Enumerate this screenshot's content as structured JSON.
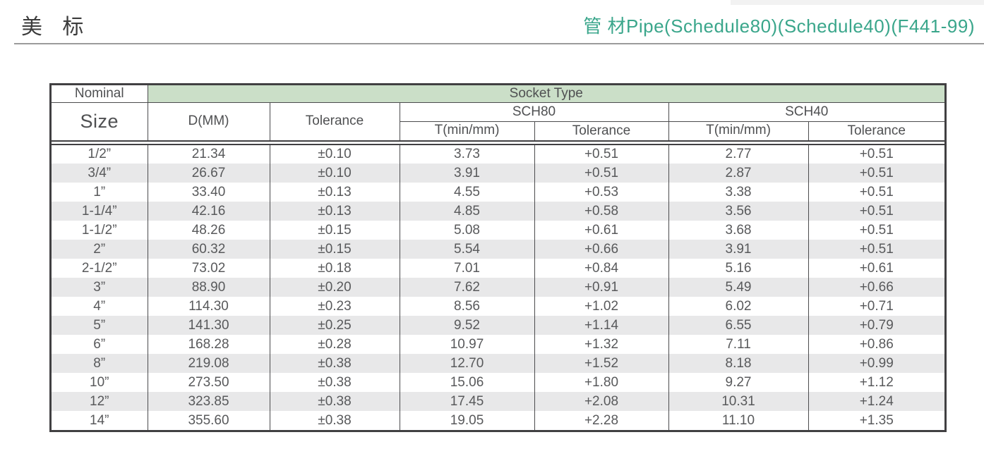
{
  "header": {
    "title_cn": "美 标",
    "title_right": "管 材Pipe(Schedule80)(Schedule40)(F441-99)",
    "accent_color": "#3aa68b"
  },
  "table": {
    "header": {
      "nominal": "Nominal",
      "size": "Size",
      "socket_type": "Socket Type",
      "d_mm": "D(MM)",
      "tolerance": "Tolerance",
      "sch80": "SCH80",
      "sch40": "SCH40",
      "t_min": "T(min/mm)",
      "sub_tolerance": "Tolerance",
      "socket_bg_color": "#cbdfc8",
      "stripe_color": "#e8e8e9"
    },
    "rows": [
      {
        "size": "1/2”",
        "d": "21.34",
        "tol": "±0.10",
        "sch80_t": "3.73",
        "sch80_tol": "+0.51",
        "sch40_t": "2.77",
        "sch40_tol": "+0.51"
      },
      {
        "size": "3/4”",
        "d": "26.67",
        "tol": "±0.10",
        "sch80_t": "3.91",
        "sch80_tol": "+0.51",
        "sch40_t": "2.87",
        "sch40_tol": "+0.51"
      },
      {
        "size": "1”",
        "d": "33.40",
        "tol": "±0.13",
        "sch80_t": "4.55",
        "sch80_tol": "+0.53",
        "sch40_t": "3.38",
        "sch40_tol": "+0.51"
      },
      {
        "size": "1-1/4”",
        "d": "42.16",
        "tol": "±0.13",
        "sch80_t": "4.85",
        "sch80_tol": "+0.58",
        "sch40_t": "3.56",
        "sch40_tol": "+0.51"
      },
      {
        "size": "1-1/2”",
        "d": "48.26",
        "tol": "±0.15",
        "sch80_t": "5.08",
        "sch80_tol": "+0.61",
        "sch40_t": "3.68",
        "sch40_tol": "+0.51"
      },
      {
        "size": "2”",
        "d": "60.32",
        "tol": "±0.15",
        "sch80_t": "5.54",
        "sch80_tol": "+0.66",
        "sch40_t": "3.91",
        "sch40_tol": "+0.51"
      },
      {
        "size": "2-1/2”",
        "d": "73.02",
        "tol": "±0.18",
        "sch80_t": "7.01",
        "sch80_tol": "+0.84",
        "sch40_t": "5.16",
        "sch40_tol": "+0.61"
      },
      {
        "size": "3”",
        "d": "88.90",
        "tol": "±0.20",
        "sch80_t": "7.62",
        "sch80_tol": "+0.91",
        "sch40_t": "5.49",
        "sch40_tol": "+0.66"
      },
      {
        "size": "4”",
        "d": "114.30",
        "tol": "±0.23",
        "sch80_t": "8.56",
        "sch80_tol": "+1.02",
        "sch40_t": "6.02",
        "sch40_tol": "+0.71"
      },
      {
        "size": "5”",
        "d": "141.30",
        "tol": "±0.25",
        "sch80_t": "9.52",
        "sch80_tol": "+1.14",
        "sch40_t": "6.55",
        "sch40_tol": "+0.79"
      },
      {
        "size": "6”",
        "d": "168.28",
        "tol": "±0.28",
        "sch80_t": "10.97",
        "sch80_tol": "+1.32",
        "sch40_t": "7.11",
        "sch40_tol": "+0.86"
      },
      {
        "size": "8”",
        "d": "219.08",
        "tol": "±0.38",
        "sch80_t": "12.70",
        "sch80_tol": "+1.52",
        "sch40_t": "8.18",
        "sch40_tol": "+0.99"
      },
      {
        "size": "10”",
        "d": "273.50",
        "tol": "±0.38",
        "sch80_t": "15.06",
        "sch80_tol": "+1.80",
        "sch40_t": "9.27",
        "sch40_tol": "+1.12"
      },
      {
        "size": "12”",
        "d": "323.85",
        "tol": "±0.38",
        "sch80_t": "17.45",
        "sch80_tol": "+2.08",
        "sch40_t": "10.31",
        "sch40_tol": "+1.24"
      },
      {
        "size": "14”",
        "d": "355.60",
        "tol": "±0.38",
        "sch80_t": "19.05",
        "sch80_tol": "+2.28",
        "sch40_t": "11.10",
        "sch40_tol": "+1.35"
      }
    ]
  }
}
